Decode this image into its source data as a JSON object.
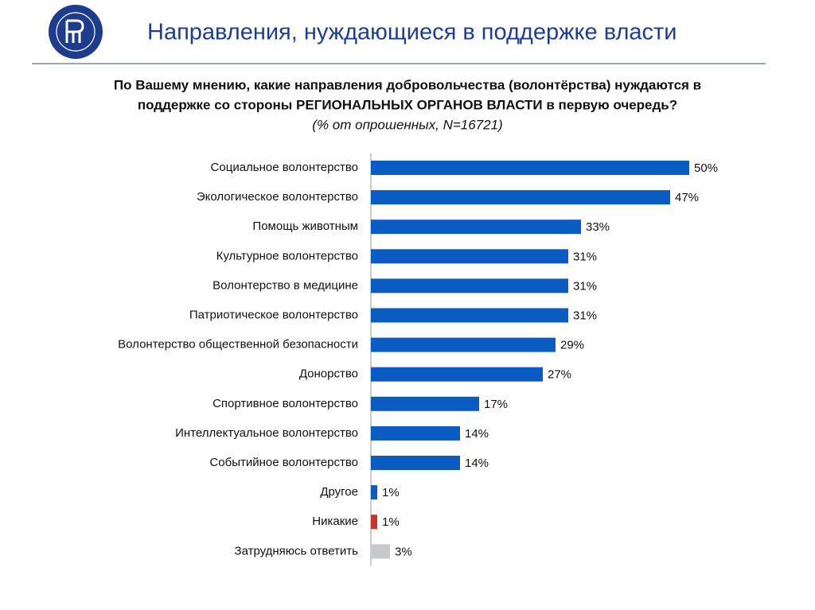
{
  "header": {
    "title": "Направления, нуждающиеся в поддержке власти"
  },
  "chart_data": {
    "type": "bar",
    "orientation": "horizontal",
    "title_lines": [
      "По Вашему мнению, какие направления добровольчества (волонтёрства) нуждаются в",
      "поддержке со стороны РЕГИОНАЛЬНЫХ ОРГАНОВ ВЛАСТИ в первую очередь?"
    ],
    "subtitle": "(% от опрошенных, N=16721)",
    "categories": [
      "Социальное волонтерство",
      "Экологическое волонтерство",
      "Помощь животным",
      "Культурное волонтерство",
      "Волонтерство в медицине",
      "Патриотическое волонтерство",
      "Волонтерство общественной безопасности",
      "Донорство",
      "Спортивное волонтерство",
      "Интеллектуальное волонтерство",
      "Событийное волонтерство",
      "Другое",
      "Никакие",
      "Затрудняюсь ответить"
    ],
    "values": [
      50,
      47,
      33,
      31,
      31,
      31,
      29,
      27,
      17,
      14,
      14,
      1,
      1,
      3
    ],
    "value_labels": [
      "50%",
      "47%",
      "33%",
      "31%",
      "31%",
      "31%",
      "29%",
      "27%",
      "17%",
      "14%",
      "14%",
      "1%",
      "1%",
      "3%"
    ],
    "colors": [
      "#0b5cc2",
      "#0b5cc2",
      "#0b5cc2",
      "#0b5cc2",
      "#0b5cc2",
      "#0b5cc2",
      "#0b5cc2",
      "#0b5cc2",
      "#0b5cc2",
      "#0b5cc2",
      "#0b5cc2",
      "#0b5cc2",
      "#c0392b",
      "#c8c9cc"
    ]
  }
}
